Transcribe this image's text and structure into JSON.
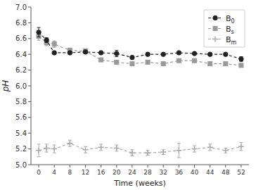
{
  "chart_data": {
    "type": "line",
    "xlabel": "Time (weeks)",
    "ylabel": "pH",
    "x": [
      0,
      2,
      4,
      8,
      12,
      16,
      20,
      24,
      28,
      32,
      36,
      40,
      44,
      48,
      52
    ],
    "xlim": [
      -2,
      54
    ],
    "xticks": [
      0,
      4,
      8,
      12,
      16,
      20,
      24,
      28,
      32,
      36,
      40,
      44,
      48,
      52
    ],
    "ylim": [
      5.0,
      7.0
    ],
    "yticks": [
      {
        "value": 5.0,
        "label": "5.0"
      },
      {
        "value": 5.2,
        "label": "5.2"
      },
      {
        "value": 5.4,
        "label": "5.4"
      },
      {
        "value": 5.6,
        "label": "5.6"
      },
      {
        "value": 5.8,
        "label": "5.8"
      },
      {
        "value": 6.0,
        "label": "6.0"
      },
      {
        "value": 6.2,
        "label": "6.2"
      },
      {
        "value": 6.4,
        "label": "6.4"
      },
      {
        "value": 6.6,
        "label": "6.6"
      },
      {
        "value": 6.8,
        "label": "6.8"
      },
      {
        "value": 7.0,
        "label": "7.0"
      }
    ],
    "grid": false,
    "legend": "upper right",
    "series": [
      {
        "name": "B0",
        "color": "#222222",
        "marker": "circle",
        "line_style": "dashed",
        "values": [
          6.68,
          6.58,
          6.42,
          6.42,
          6.43,
          6.42,
          6.41,
          6.36,
          6.4,
          6.4,
          6.42,
          6.41,
          6.4,
          6.4,
          6.34
        ],
        "errors": [
          0.06,
          0.03,
          0.02,
          0.02,
          0.02,
          0.02,
          0.04,
          0.02,
          0.02,
          0.02,
          0.02,
          0.02,
          0.02,
          0.02,
          0.03
        ]
      },
      {
        "name": "Bs",
        "color": "#999999",
        "marker": "square",
        "line_style": "dashed",
        "values": [
          6.63,
          6.55,
          6.53,
          6.45,
          6.44,
          6.33,
          6.3,
          6.28,
          6.3,
          6.28,
          6.32,
          6.32,
          6.28,
          6.28,
          6.26
        ],
        "errors": [
          0.05,
          0.04,
          0.04,
          0.03,
          0.03,
          0.02,
          0.02,
          0.02,
          0.02,
          0.02,
          0.02,
          0.02,
          0.02,
          0.02,
          0.02
        ]
      },
      {
        "name": "Bm",
        "color": "#aaaaaa",
        "marker": "plus",
        "line_style": "dashed",
        "values": [
          5.18,
          5.21,
          5.2,
          5.27,
          5.19,
          5.22,
          5.21,
          5.15,
          5.15,
          5.16,
          5.18,
          5.2,
          5.22,
          5.18,
          5.23
        ],
        "errors": [
          0.08,
          0.05,
          0.05,
          0.04,
          0.04,
          0.04,
          0.04,
          0.04,
          0.03,
          0.03,
          0.09,
          0.04,
          0.04,
          0.03,
          0.05
        ]
      }
    ]
  }
}
